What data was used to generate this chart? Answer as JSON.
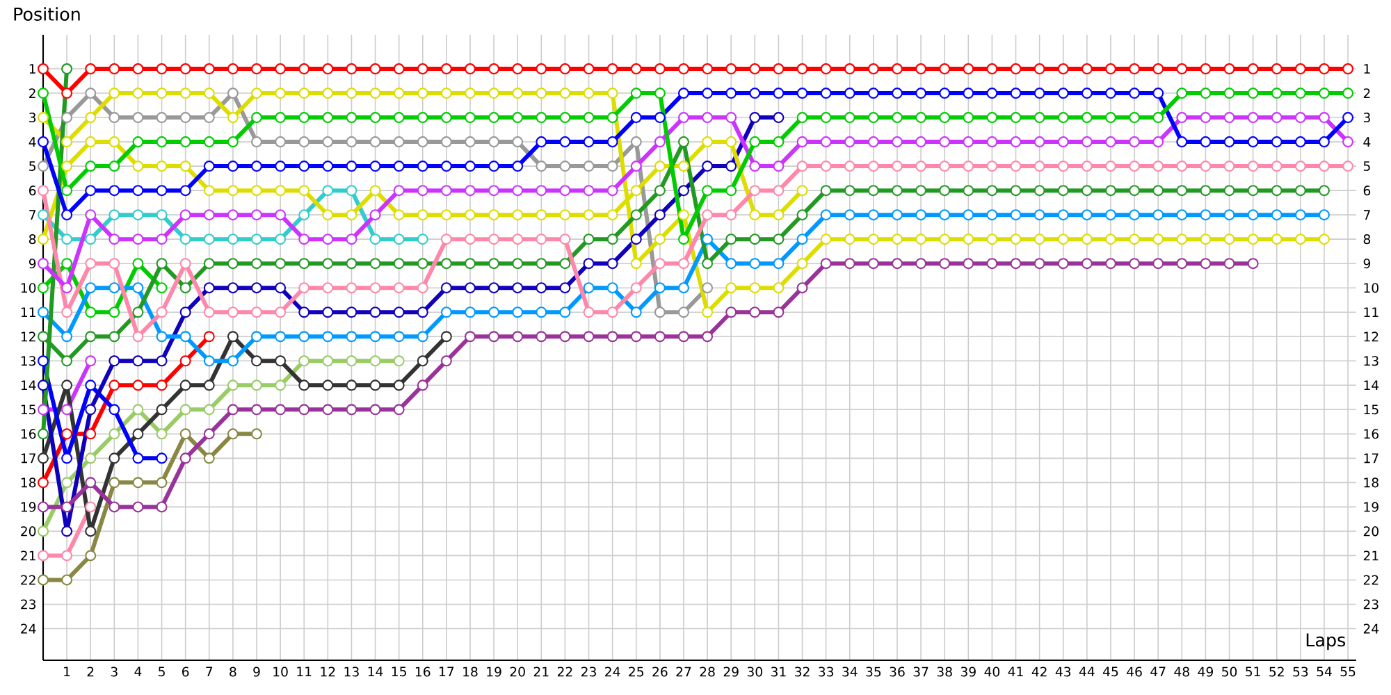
{
  "chart_data": {
    "type": "line",
    "xlabel": "Laps",
    "ylabel": "Position",
    "x": [
      0,
      1,
      2,
      3,
      4,
      5,
      6,
      7,
      8,
      9,
      10,
      11,
      12,
      13,
      14,
      15,
      16,
      17,
      18,
      19,
      20,
      21,
      22,
      23,
      24,
      25,
      26,
      27,
      28,
      29,
      30,
      31,
      32,
      33,
      34,
      35,
      36,
      37,
      38,
      39,
      40,
      41,
      42,
      43,
      44,
      45,
      46,
      47,
      48,
      49,
      50,
      51,
      52,
      53,
      54,
      55
    ],
    "xlim": [
      0,
      55.35
    ],
    "xticks": [
      1,
      2,
      3,
      4,
      5,
      6,
      7,
      8,
      9,
      10,
      11,
      12,
      13,
      14,
      15,
      16,
      17,
      18,
      19,
      20,
      21,
      22,
      23,
      24,
      25,
      26,
      27,
      28,
      29,
      30,
      31,
      32,
      33,
      34,
      35,
      36,
      37,
      38,
      39,
      40,
      41,
      42,
      43,
      44,
      45,
      46,
      47,
      48,
      49,
      50,
      51,
      52,
      53,
      54,
      55
    ],
    "ylim": [
      25.3,
      -0.4
    ],
    "yticks": [
      1,
      2,
      3,
      4,
      5,
      6,
      7,
      8,
      9,
      10,
      11,
      12,
      13,
      14,
      15,
      16,
      17,
      18,
      19,
      20,
      21,
      22,
      23,
      24
    ],
    "y2lim": [
      25.3,
      -0.4
    ],
    "y2ticks": [
      1,
      2,
      3,
      4,
      5,
      6,
      7,
      8,
      9,
      10,
      11,
      12,
      13,
      14,
      15,
      16,
      17,
      18,
      19,
      20,
      21,
      22,
      23,
      24
    ],
    "grid": true,
    "marker": "circle",
    "line_style": "solid",
    "series": [
      {
        "color": "#ff88aa",
        "values": [
          21,
          21,
          19,
          null,
          null,
          null,
          null,
          null,
          null,
          null,
          null,
          null,
          null,
          null,
          null,
          null,
          null,
          null,
          null,
          null,
          null,
          null,
          null,
          null,
          null,
          null,
          null,
          null,
          null,
          null,
          null,
          null,
          null,
          null,
          null,
          null,
          null,
          null,
          null,
          null,
          null,
          null,
          null,
          null,
          null,
          null,
          null,
          null,
          null,
          null,
          null,
          null,
          null,
          null,
          null,
          null
        ]
      },
      {
        "color": "#cc33ff",
        "values": [
          15,
          15,
          13,
          null,
          null,
          null,
          null,
          null,
          null,
          null,
          null,
          null,
          null,
          null,
          null,
          null,
          null,
          null,
          null,
          null,
          null,
          null,
          null,
          null,
          null,
          null,
          null,
          null,
          null,
          null,
          null,
          null,
          null,
          null,
          null,
          null,
          null,
          null,
          null,
          null,
          null,
          null,
          null,
          null,
          null,
          null,
          null,
          null,
          null,
          null,
          null,
          null,
          null,
          null,
          null,
          null
        ]
      },
      {
        "color": "#888844",
        "values": [
          22,
          22,
          21,
          18,
          18,
          18,
          16,
          17,
          16,
          16,
          null,
          null,
          null,
          null,
          null,
          null,
          null,
          null,
          null,
          null,
          null,
          null,
          null,
          null,
          null,
          null,
          null,
          null,
          null,
          null,
          null,
          null,
          null,
          null,
          null,
          null,
          null,
          null,
          null,
          null,
          null,
          null,
          null,
          null,
          null,
          null,
          null,
          null,
          null,
          null,
          null,
          null,
          null,
          null,
          null,
          null
        ]
      },
      {
        "color": "#99cc66",
        "values": [
          20,
          18,
          17,
          16,
          15,
          16,
          15,
          15,
          14,
          14,
          14,
          13,
          13,
          13,
          13,
          13,
          null,
          null,
          null,
          null,
          null,
          null,
          null,
          null,
          null,
          null,
          null,
          null,
          null,
          null,
          null,
          null,
          null,
          null,
          null,
          null,
          null,
          null,
          null,
          null,
          null,
          null,
          null,
          null,
          null,
          null,
          null,
          null,
          null,
          null,
          null,
          null,
          null,
          null,
          null,
          null
        ]
      },
      {
        "color": "#333333",
        "values": [
          17,
          14,
          20,
          17,
          16,
          15,
          14,
          14,
          12,
          13,
          13,
          14,
          14,
          14,
          14,
          14,
          13,
          12,
          null,
          null,
          null,
          null,
          null,
          null,
          null,
          null,
          null,
          null,
          null,
          null,
          null,
          null,
          null,
          null,
          null,
          null,
          null,
          null,
          null,
          null,
          null,
          null,
          null,
          null,
          null,
          null,
          null,
          null,
          null,
          null,
          null,
          null,
          null,
          null,
          null,
          null
        ]
      },
      {
        "color": "#ff0000",
        "values": [
          18,
          16,
          16,
          14,
          14,
          14,
          13,
          12,
          null,
          null,
          null,
          null,
          null,
          null,
          null,
          null,
          null,
          null,
          null,
          null,
          null,
          null,
          null,
          null,
          null,
          null,
          null,
          null,
          null,
          null,
          null,
          null,
          null,
          null,
          null,
          null,
          null,
          null,
          null,
          null,
          null,
          null,
          null,
          null,
          null,
          null,
          null,
          null,
          null,
          null,
          null,
          null,
          null,
          null,
          null,
          null
        ]
      },
      {
        "color": "#0000ff",
        "values": [
          13,
          17,
          14,
          15,
          17,
          17,
          null,
          null,
          null,
          null,
          null,
          null,
          null,
          null,
          null,
          null,
          null,
          null,
          null,
          null,
          null,
          null,
          null,
          null,
          null,
          null,
          null,
          null,
          null,
          null,
          null,
          null,
          null,
          null,
          null,
          null,
          null,
          null,
          null,
          null,
          null,
          null,
          null,
          null,
          null,
          null,
          null,
          null,
          null,
          null,
          null,
          null,
          null,
          null,
          null,
          null
        ]
      },
      {
        "color": "#00cc00",
        "values": [
          10,
          9,
          11,
          11,
          9,
          10,
          null,
          null,
          null,
          null,
          null,
          null,
          null,
          null,
          null,
          null,
          null,
          null,
          null,
          null,
          null,
          null,
          null,
          null,
          null,
          null,
          null,
          null,
          null,
          null,
          null,
          null,
          null,
          null,
          null,
          null,
          null,
          null,
          null,
          null,
          null,
          null,
          null,
          null,
          null,
          null,
          null,
          null,
          null,
          null,
          null,
          null,
          null,
          null,
          null,
          null
        ]
      },
      {
        "color": "#33cccc",
        "values": [
          7,
          8,
          8,
          7,
          7,
          7,
          8,
          8,
          8,
          8,
          8,
          7,
          6,
          6,
          8,
          8,
          8,
          null,
          null,
          null,
          null,
          null,
          null,
          null,
          null,
          null,
          null,
          null,
          null,
          null,
          null,
          null,
          null,
          null,
          null,
          null,
          null,
          null,
          null,
          null,
          null,
          null,
          null,
          null,
          null,
          null,
          null,
          null,
          null,
          null,
          null,
          null,
          null,
          null,
          null,
          null
        ]
      },
      {
        "color": "#999999",
        "values": [
          5,
          3,
          2,
          3,
          3,
          3,
          3,
          3,
          2,
          4,
          4,
          4,
          4,
          4,
          4,
          4,
          4,
          4,
          4,
          4,
          4,
          5,
          5,
          5,
          5,
          4,
          11,
          11,
          10,
          null,
          null,
          null,
          null,
          null,
          null,
          null,
          null,
          null,
          null,
          null,
          null,
          null,
          null,
          null,
          null,
          null,
          null,
          null,
          null,
          null,
          null,
          null,
          null,
          null,
          null,
          null
        ]
      },
      {
        "color": "#1100bb",
        "values": [
          14,
          20,
          15,
          13,
          13,
          13,
          11,
          10,
          10,
          10,
          10,
          11,
          11,
          11,
          11,
          11,
          11,
          10,
          10,
          10,
          10,
          10,
          10,
          9,
          9,
          8,
          7,
          6,
          5,
          5,
          3,
          3,
          null,
          null,
          null,
          null,
          null,
          null,
          null,
          null,
          null,
          null,
          null,
          null,
          null,
          null,
          null,
          null,
          null,
          null,
          null,
          null,
          null,
          null,
          null,
          null
        ]
      },
      {
        "color": "#dddd00",
        "values": [
          8,
          5,
          4,
          4,
          5,
          5,
          5,
          6,
          6,
          6,
          6,
          6,
          7,
          7,
          6,
          7,
          7,
          7,
          7,
          7,
          7,
          7,
          7,
          7,
          7,
          6,
          5,
          5,
          4,
          4,
          7,
          7,
          6,
          null,
          null,
          null,
          null,
          null,
          null,
          null,
          null,
          null,
          null,
          null,
          null,
          null,
          null,
          null,
          null,
          null,
          null,
          null,
          null,
          null,
          null,
          null
        ]
      },
      {
        "color": "#993399",
        "values": [
          19,
          19,
          18,
          19,
          19,
          19,
          17,
          16,
          15,
          15,
          15,
          15,
          15,
          15,
          15,
          15,
          14,
          13,
          12,
          12,
          12,
          12,
          12,
          12,
          12,
          12,
          12,
          12,
          12,
          11,
          11,
          11,
          10,
          9,
          9,
          9,
          9,
          9,
          9,
          9,
          9,
          9,
          9,
          9,
          9,
          9,
          9,
          9,
          9,
          9,
          9,
          9,
          null,
          null,
          null,
          null
        ]
      },
      {
        "color": "#dddd00",
        "values": [
          3,
          4,
          3,
          2,
          2,
          2,
          2,
          2,
          3,
          2,
          2,
          2,
          2,
          2,
          2,
          2,
          2,
          2,
          2,
          2,
          2,
          2,
          2,
          2,
          2,
          9,
          8,
          7,
          11,
          10,
          10,
          10,
          9,
          8,
          8,
          8,
          8,
          8,
          8,
          8,
          8,
          8,
          8,
          8,
          8,
          8,
          8,
          8,
          8,
          8,
          8,
          8,
          8,
          8,
          8,
          null
        ]
      },
      {
        "color": "#0099ff",
        "values": [
          11,
          12,
          10,
          10,
          10,
          12,
          12,
          13,
          13,
          12,
          12,
          12,
          12,
          12,
          12,
          12,
          12,
          11,
          11,
          11,
          11,
          11,
          11,
          10,
          10,
          11,
          10,
          10,
          8,
          9,
          9,
          9,
          8,
          7,
          7,
          7,
          7,
          7,
          7,
          7,
          7,
          7,
          7,
          7,
          7,
          7,
          7,
          7,
          7,
          7,
          7,
          7,
          7,
          7,
          7,
          null
        ]
      },
      {
        "color": "#229922",
        "values": [
          12,
          13,
          12,
          12,
          11,
          9,
          10,
          9,
          9,
          9,
          9,
          9,
          9,
          9,
          9,
          9,
          9,
          9,
          9,
          9,
          9,
          9,
          9,
          8,
          8,
          7,
          6,
          4,
          9,
          8,
          8,
          8,
          7,
          6,
          6,
          6,
          6,
          6,
          6,
          6,
          6,
          6,
          6,
          6,
          6,
          6,
          6,
          6,
          6,
          6,
          6,
          6,
          6,
          6,
          6,
          null
        ]
      },
      {
        "color": "#229922",
        "values": [
          16,
          1,
          null,
          null,
          null,
          null,
          null,
          null,
          null,
          null,
          null,
          null,
          null,
          null,
          null,
          null,
          null,
          null,
          null,
          null,
          null,
          null,
          null,
          null,
          null,
          null,
          null,
          null,
          null,
          null,
          null,
          null,
          null,
          null,
          null,
          null,
          null,
          null,
          null,
          null,
          null,
          null,
          null,
          null,
          null,
          null,
          null,
          null,
          null,
          null,
          null,
          null,
          null,
          null,
          null,
          null
        ]
      },
      {
        "color": "#ff88aa",
        "values": [
          6,
          11,
          9,
          9,
          12,
          11,
          9,
          11,
          11,
          11,
          11,
          10,
          10,
          10,
          10,
          10,
          10,
          8,
          8,
          8,
          8,
          8,
          8,
          11,
          11,
          10,
          9,
          9,
          7,
          7,
          6,
          6,
          5,
          5,
          5,
          5,
          5,
          5,
          5,
          5,
          5,
          5,
          5,
          5,
          5,
          5,
          5,
          5,
          5,
          5,
          5,
          5,
          5,
          5,
          5,
          5
        ]
      },
      {
        "color": "#cc33ff",
        "values": [
          9,
          10,
          7,
          8,
          8,
          8,
          7,
          7,
          7,
          7,
          7,
          8,
          8,
          8,
          7,
          6,
          6,
          6,
          6,
          6,
          6,
          6,
          6,
          6,
          6,
          5,
          4,
          3,
          3,
          3,
          5,
          5,
          4,
          4,
          4,
          4,
          4,
          4,
          4,
          4,
          4,
          4,
          4,
          4,
          4,
          4,
          4,
          4,
          3,
          3,
          3,
          3,
          3,
          3,
          3,
          4
        ]
      },
      {
        "color": "#0000ff",
        "values": [
          4,
          7,
          6,
          6,
          6,
          6,
          6,
          5,
          5,
          5,
          5,
          5,
          5,
          5,
          5,
          5,
          5,
          5,
          5,
          5,
          5,
          4,
          4,
          4,
          4,
          3,
          3,
          2,
          2,
          2,
          2,
          2,
          2,
          2,
          2,
          2,
          2,
          2,
          2,
          2,
          2,
          2,
          2,
          2,
          2,
          2,
          2,
          2,
          4,
          4,
          4,
          4,
          4,
          4,
          4,
          3
        ]
      },
      {
        "color": "#00cc00",
        "values": [
          2,
          6,
          5,
          5,
          4,
          4,
          4,
          4,
          4,
          3,
          3,
          3,
          3,
          3,
          3,
          3,
          3,
          3,
          3,
          3,
          3,
          3,
          3,
          3,
          3,
          2,
          2,
          8,
          6,
          6,
          4,
          4,
          3,
          3,
          3,
          3,
          3,
          3,
          3,
          3,
          3,
          3,
          3,
          3,
          3,
          3,
          3,
          3,
          2,
          2,
          2,
          2,
          2,
          2,
          2,
          2
        ]
      },
      {
        "color": "#ff0000",
        "values": [
          1,
          2,
          1,
          1,
          1,
          1,
          1,
          1,
          1,
          1,
          1,
          1,
          1,
          1,
          1,
          1,
          1,
          1,
          1,
          1,
          1,
          1,
          1,
          1,
          1,
          1,
          1,
          1,
          1,
          1,
          1,
          1,
          1,
          1,
          1,
          1,
          1,
          1,
          1,
          1,
          1,
          1,
          1,
          1,
          1,
          1,
          1,
          1,
          1,
          1,
          1,
          1,
          1,
          1,
          1,
          1
        ]
      }
    ]
  }
}
